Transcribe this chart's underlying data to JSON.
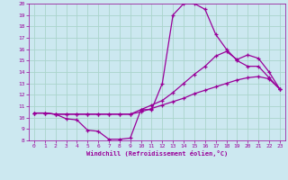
{
  "background_color": "#cce8f0",
  "grid_color": "#aad4cc",
  "line_color": "#990099",
  "marker": "+",
  "xlabel": "Windchill (Refroidissement éolien,°C)",
  "xlabel_color": "#990099",
  "tick_color": "#990099",
  "xlim": [
    -0.5,
    23.5
  ],
  "ylim": [
    8,
    20
  ],
  "xticks": [
    0,
    1,
    2,
    3,
    4,
    5,
    6,
    7,
    8,
    9,
    10,
    11,
    12,
    13,
    14,
    15,
    16,
    17,
    18,
    19,
    20,
    21,
    22,
    23
  ],
  "yticks": [
    8,
    9,
    10,
    11,
    12,
    13,
    14,
    15,
    16,
    17,
    18,
    19,
    20
  ],
  "line1_x": [
    0,
    1,
    2,
    3,
    4,
    5,
    6,
    7,
    8,
    9,
    10,
    11,
    12,
    13,
    14,
    15,
    16,
    17,
    18,
    19,
    20,
    21,
    22,
    23
  ],
  "line1_y": [
    10.4,
    10.4,
    10.3,
    9.9,
    9.8,
    8.9,
    8.8,
    8.1,
    8.1,
    8.2,
    10.7,
    10.7,
    13.0,
    19.0,
    20.0,
    20.0,
    19.5,
    17.3,
    16.0,
    15.0,
    14.5,
    14.5,
    13.5,
    12.5
  ],
  "line2_x": [
    0,
    1,
    2,
    3,
    4,
    5,
    6,
    7,
    8,
    9,
    10,
    11,
    12,
    13,
    14,
    15,
    16,
    17,
    18,
    19,
    20,
    21,
    22,
    23
  ],
  "line2_y": [
    10.4,
    10.4,
    10.3,
    10.3,
    10.3,
    10.3,
    10.3,
    10.3,
    10.3,
    10.3,
    10.7,
    11.1,
    11.5,
    12.2,
    13.0,
    13.8,
    14.5,
    15.4,
    15.8,
    15.1,
    15.5,
    15.2,
    14.0,
    12.5
  ],
  "line3_x": [
    0,
    1,
    2,
    3,
    4,
    5,
    6,
    7,
    8,
    9,
    10,
    11,
    12,
    13,
    14,
    15,
    16,
    17,
    18,
    19,
    20,
    21,
    22,
    23
  ],
  "line3_y": [
    10.4,
    10.4,
    10.3,
    10.3,
    10.3,
    10.3,
    10.3,
    10.3,
    10.3,
    10.3,
    10.5,
    10.8,
    11.1,
    11.4,
    11.7,
    12.1,
    12.4,
    12.7,
    13.0,
    13.3,
    13.5,
    13.6,
    13.4,
    12.5
  ]
}
